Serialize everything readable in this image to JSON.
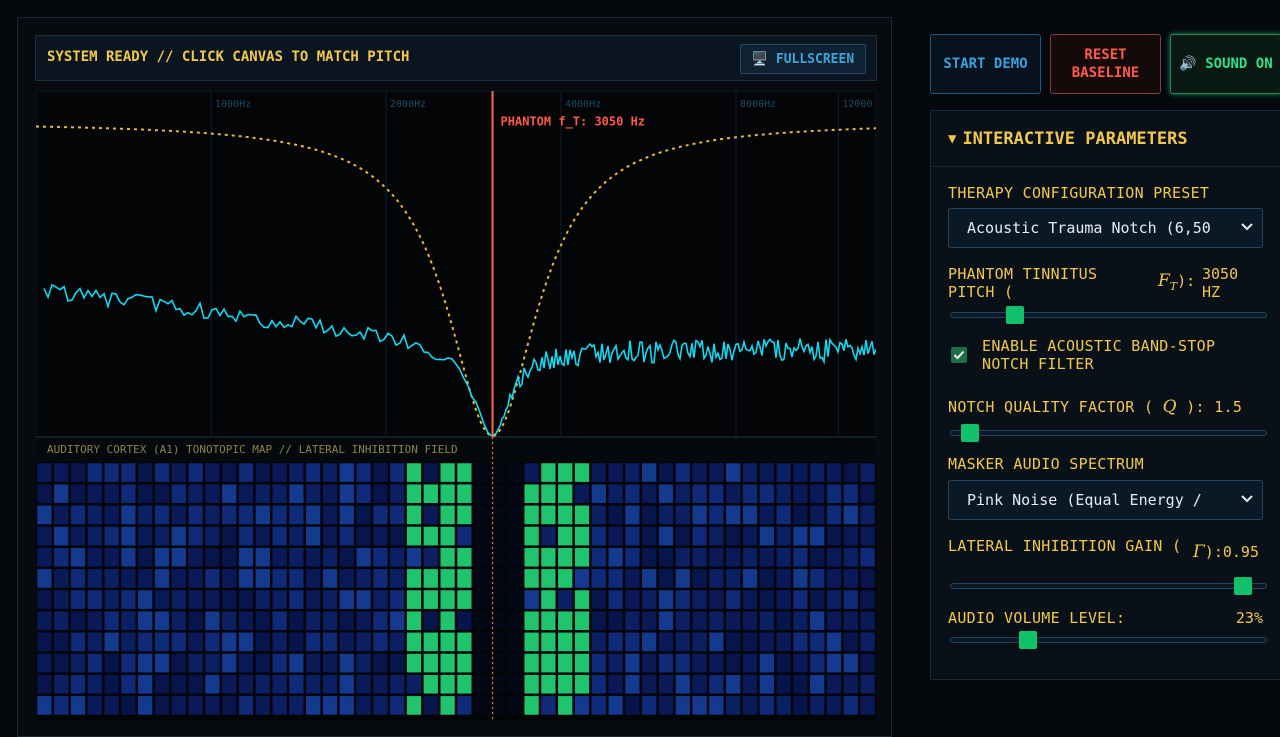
{
  "status": {
    "text": "SYSTEM READY // CLICK CANVAS TO MATCH PITCH",
    "fullscreen": "🖥️ FULLSCREEN"
  },
  "spectrum": {
    "ticks": [
      {
        "value": 1000,
        "label": "1000Hz"
      },
      {
        "value": 2000,
        "label": "2000Hz"
      },
      {
        "value": 4000,
        "label": "4000Hz"
      },
      {
        "value": 8000,
        "label": "8000Hz"
      },
      {
        "value": 12000,
        "label": "12000"
      }
    ],
    "phantom_hz": 3050,
    "phantom_label": "PHANTOM f_T: 3050 Hz"
  },
  "map_label": "AUDITORY CORTEX (A1) TONOTOPIC MAP // LATERAL INHIBITION FIELD",
  "buttons": [
    "START DEMO",
    "RESET BASELINE",
    "🔊 SOUND ON"
  ],
  "panel": {
    "title": "INTERACTIVE PARAMETERS",
    "preset_label": "THERAPY CONFIGURATION PRESET",
    "preset_value": "Acoustic Trauma Notch (6,50",
    "pitch_label": "PHANTOM TINNITUS PITCH (",
    "pitch_math": "F",
    "pitch_math_sub": "T",
    "pitch_close": "):",
    "pitch_value": "3050 HZ",
    "notch_label": "ENABLE ACOUSTIC BAND-STOP NOTCH FILTER",
    "q_label": "NOTCH QUALITY FACTOR (",
    "q_math": "Q",
    "q_close": "):",
    "q_value": "1.5",
    "masker_label": "MASKER AUDIO SPECTRUM",
    "masker_value": "Pink Noise (Equal Energy /",
    "gain_label": "LATERAL INHIBITION GAIN (",
    "gain_math": "Γ",
    "gain_close": "):",
    "gain_value": "0.95",
    "volume_label": "AUDIO VOLUME LEVEL:",
    "volume_value": "23%"
  }
}
